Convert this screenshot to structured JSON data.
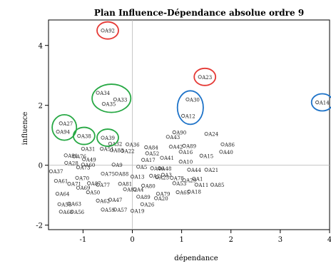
{
  "chart_data": {
    "type": "scatter",
    "title": "Plan Influence-Dépendance absolue ordre 9",
    "xlabel": "dépendance",
    "ylabel": "influence",
    "xlim": [
      -1.7,
      4.0
    ],
    "ylim": [
      -2.15,
      4.85
    ],
    "xticks": [
      -1,
      0,
      1,
      2,
      3,
      4
    ],
    "yticks": [
      -2,
      0,
      2,
      4
    ],
    "grid": false,
    "reference_lines": {
      "x": 0,
      "y": 0
    },
    "points": [
      {
        "label": "A92",
        "x": -0.6,
        "y": 4.5
      },
      {
        "label": "A23",
        "x": 1.37,
        "y": 2.95
      },
      {
        "label": "A14",
        "x": 3.75,
        "y": 2.1
      },
      {
        "label": "A30",
        "x": 1.12,
        "y": 2.2
      },
      {
        "label": "A12",
        "x": 1.03,
        "y": 1.65
      },
      {
        "label": "A34",
        "x": -0.7,
        "y": 2.42
      },
      {
        "label": "A33",
        "x": -0.35,
        "y": 2.2
      },
      {
        "label": "A35",
        "x": -0.58,
        "y": 2.05
      },
      {
        "label": "A27",
        "x": -1.45,
        "y": 1.4
      },
      {
        "label": "A94",
        "x": -1.51,
        "y": 1.12
      },
      {
        "label": "A38",
        "x": -1.08,
        "y": 0.98
      },
      {
        "label": "A39",
        "x": -0.6,
        "y": 0.92
      },
      {
        "label": "A31",
        "x": -1.0,
        "y": 0.55
      },
      {
        "label": "A91",
        "x": -1.35,
        "y": 0.33
      },
      {
        "label": "A76",
        "x": -1.18,
        "y": 0.3
      },
      {
        "label": "A28",
        "x": -1.34,
        "y": 0.08
      },
      {
        "label": "A73",
        "x": -1.1,
        "y": -0.07
      },
      {
        "label": "A37",
        "x": -1.65,
        "y": -0.2
      },
      {
        "label": "A61",
        "x": -1.55,
        "y": -0.52
      },
      {
        "label": "A64",
        "x": -1.52,
        "y": -0.95
      },
      {
        "label": "A58",
        "x": -1.48,
        "y": -1.3
      },
      {
        "label": "A68",
        "x": -1.45,
        "y": -1.55
      },
      {
        "label": "A63",
        "x": -1.28,
        "y": -1.28
      },
      {
        "label": "A56",
        "x": -1.22,
        "y": -1.55
      },
      {
        "label": "A50",
        "x": -0.9,
        "y": -0.9
      },
      {
        "label": "A62",
        "x": -0.7,
        "y": -1.18
      },
      {
        "label": "A59",
        "x": -0.6,
        "y": -1.48
      },
      {
        "label": "A57",
        "x": -0.35,
        "y": -1.48
      },
      {
        "label": "A19",
        "x": 0.0,
        "y": -1.52
      },
      {
        "label": "A47",
        "x": -0.45,
        "y": -1.15
      },
      {
        "label": "A49",
        "x": -0.98,
        "y": 0.2
      },
      {
        "label": "A60",
        "x": -1.0,
        "y": 0.02
      },
      {
        "label": "A51",
        "x": -0.62,
        "y": 0.55
      },
      {
        "label": "A32",
        "x": -0.45,
        "y": 0.72
      },
      {
        "label": "A83",
        "x": -0.42,
        "y": 0.5
      },
      {
        "label": "A22",
        "x": -0.2,
        "y": 0.48
      },
      {
        "label": "A36",
        "x": -0.1,
        "y": 0.7
      },
      {
        "label": "A84",
        "x": 0.28,
        "y": 0.6
      },
      {
        "label": "A43",
        "x": 0.72,
        "y": 0.95
      },
      {
        "label": "A90",
        "x": 0.85,
        "y": 1.1
      },
      {
        "label": "A24",
        "x": 1.5,
        "y": 1.05
      },
      {
        "label": "A86",
        "x": 1.83,
        "y": 0.7
      },
      {
        "label": "A40",
        "x": 1.8,
        "y": 0.45
      },
      {
        "label": "A42",
        "x": 0.78,
        "y": 0.62
      },
      {
        "label": "A89",
        "x": 1.05,
        "y": 0.65
      },
      {
        "label": "A16",
        "x": 0.98,
        "y": 0.45
      },
      {
        "label": "A15",
        "x": 1.4,
        "y": 0.32
      },
      {
        "label": "A52",
        "x": 0.3,
        "y": 0.4
      },
      {
        "label": "A17",
        "x": 0.22,
        "y": 0.18
      },
      {
        "label": "A41",
        "x": 0.6,
        "y": 0.25
      },
      {
        "label": "A10",
        "x": 0.98,
        "y": 0.12
      },
      {
        "label": "A5",
        "x": 0.12,
        "y": -0.05
      },
      {
        "label": "A9",
        "x": -0.38,
        "y": 0.02
      },
      {
        "label": "A46",
        "x": 0.4,
        "y": -0.1
      },
      {
        "label": "A48",
        "x": 0.55,
        "y": -0.1
      },
      {
        "label": "A44",
        "x": 1.15,
        "y": -0.15
      },
      {
        "label": "A21",
        "x": 1.5,
        "y": -0.15
      },
      {
        "label": "A75",
        "x": -0.6,
        "y": -0.28
      },
      {
        "label": "A88",
        "x": -0.32,
        "y": -0.28
      },
      {
        "label": "A13",
        "x": 0.0,
        "y": -0.38
      },
      {
        "label": "A2",
        "x": 0.38,
        "y": -0.35
      },
      {
        "label": "A25",
        "x": 0.5,
        "y": -0.4
      },
      {
        "label": "A3",
        "x": 0.62,
        "y": -0.32
      },
      {
        "label": "A78",
        "x": 0.8,
        "y": -0.42
      },
      {
        "label": "A1",
        "x": 1.25,
        "y": -0.45
      },
      {
        "label": "A29",
        "x": 1.05,
        "y": -0.5
      },
      {
        "label": "A53",
        "x": 0.85,
        "y": -0.6
      },
      {
        "label": "A11",
        "x": 1.3,
        "y": -0.65
      },
      {
        "label": "A85",
        "x": 1.62,
        "y": -0.65
      },
      {
        "label": "A18",
        "x": 1.15,
        "y": -0.88
      },
      {
        "label": "A65",
        "x": 0.92,
        "y": -0.9
      },
      {
        "label": "A20",
        "x": 0.48,
        "y": -1.1
      },
      {
        "label": "A80",
        "x": 0.22,
        "y": -0.68
      },
      {
        "label": "A79",
        "x": 0.52,
        "y": -0.95
      },
      {
        "label": "A26",
        "x": 0.2,
        "y": -1.3
      },
      {
        "label": "A81",
        "x": -0.25,
        "y": -0.62
      },
      {
        "label": "A82",
        "x": -0.15,
        "y": -0.8
      },
      {
        "label": "A4",
        "x": 0.05,
        "y": -0.8
      },
      {
        "label": "A89",
        "x": 0.12,
        "y": -1.05
      },
      {
        "label": "A87",
        "x": -0.88,
        "y": -0.6
      },
      {
        "label": "A77",
        "x": -0.7,
        "y": -0.65
      },
      {
        "label": "A70",
        "x": -1.12,
        "y": -0.42
      },
      {
        "label": "A71",
        "x": -1.28,
        "y": -0.62
      },
      {
        "label": "A69",
        "x": -1.1,
        "y": -0.75
      }
    ],
    "highlight_circles": [
      {
        "color": "red",
        "points": [
          "A92"
        ]
      },
      {
        "color": "red",
        "points": [
          "A23"
        ]
      },
      {
        "color": "blue",
        "points": [
          "A14"
        ]
      },
      {
        "color": "blue",
        "points": [
          "A30",
          "A12"
        ]
      },
      {
        "color": "green",
        "points": [
          "A34",
          "A33",
          "A35"
        ]
      },
      {
        "color": "green",
        "points": [
          "A27",
          "A94"
        ]
      },
      {
        "color": "green",
        "points": [
          "A38"
        ]
      },
      {
        "color": "green",
        "points": [
          "A39"
        ]
      }
    ]
  },
  "colors": {
    "red": "#e53935",
    "blue": "#1e73c8",
    "green": "#27a844",
    "point": "#333333",
    "axis": "#000000",
    "refline": "#bbbbbb"
  }
}
